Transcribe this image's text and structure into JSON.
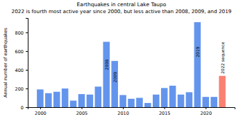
{
  "chart_data": {
    "type": "bar",
    "title": "Earthquakes in central Lake Taupo",
    "subtitle": "2022 is fourth most active year since 2000, but less active than 2008, 2009, and 2019",
    "y_label": "Annual number of earthquakes",
    "x": [
      2000,
      2001,
      2002,
      2003,
      2004,
      2005,
      2006,
      2007,
      2008,
      2009,
      2010,
      2011,
      2012,
      2013,
      2014,
      2015,
      2016,
      2017,
      2018,
      2019,
      2020,
      2021,
      2022
    ],
    "values": [
      190,
      150,
      165,
      200,
      70,
      140,
      135,
      220,
      700,
      495,
      130,
      90,
      100,
      45,
      135,
      205,
      230,
      135,
      160,
      910,
      110,
      110,
      335
    ],
    "colors": [
      "#6495ed",
      "#6495ed",
      "#6495ed",
      "#6495ed",
      "#6495ed",
      "#6495ed",
      "#6495ed",
      "#6495ed",
      "#6495ed",
      "#6495ed",
      "#6495ed",
      "#6495ed",
      "#6495ed",
      "#6495ed",
      "#6495ed",
      "#6495ed",
      "#6495ed",
      "#6495ed",
      "#6495ed",
      "#6495ed",
      "#6495ed",
      "#6495ed",
      "#fa8072"
    ],
    "xlim": [
      1998.5,
      2023.5
    ],
    "xticks": [
      2000,
      2005,
      2010,
      2015,
      2020
    ],
    "ylim": [
      0,
      955
    ],
    "yticks": [
      0,
      200,
      400,
      600,
      800
    ],
    "grid": false,
    "annotations": [
      {
        "text": "2008",
        "x": 2008
      },
      {
        "text": "2009",
        "x": 2009
      },
      {
        "text": "2019",
        "x": 2019
      },
      {
        "text": "2022 sequence",
        "x": 2022
      }
    ]
  }
}
